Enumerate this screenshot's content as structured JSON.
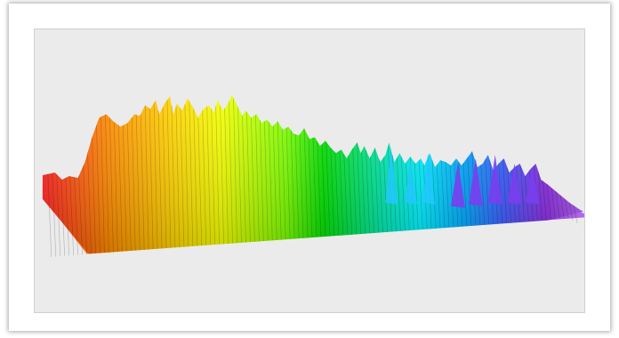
{
  "image": {
    "subject": "3d-spectrum-waterfall",
    "panel_background": "#ebebeb",
    "frame_background": "#ffffff",
    "palette": [
      "#ff2020",
      "#ff9a00",
      "#ffff00",
      "#00dd00",
      "#00ffff",
      "#0080ff",
      "#8a2be2"
    ]
  }
}
